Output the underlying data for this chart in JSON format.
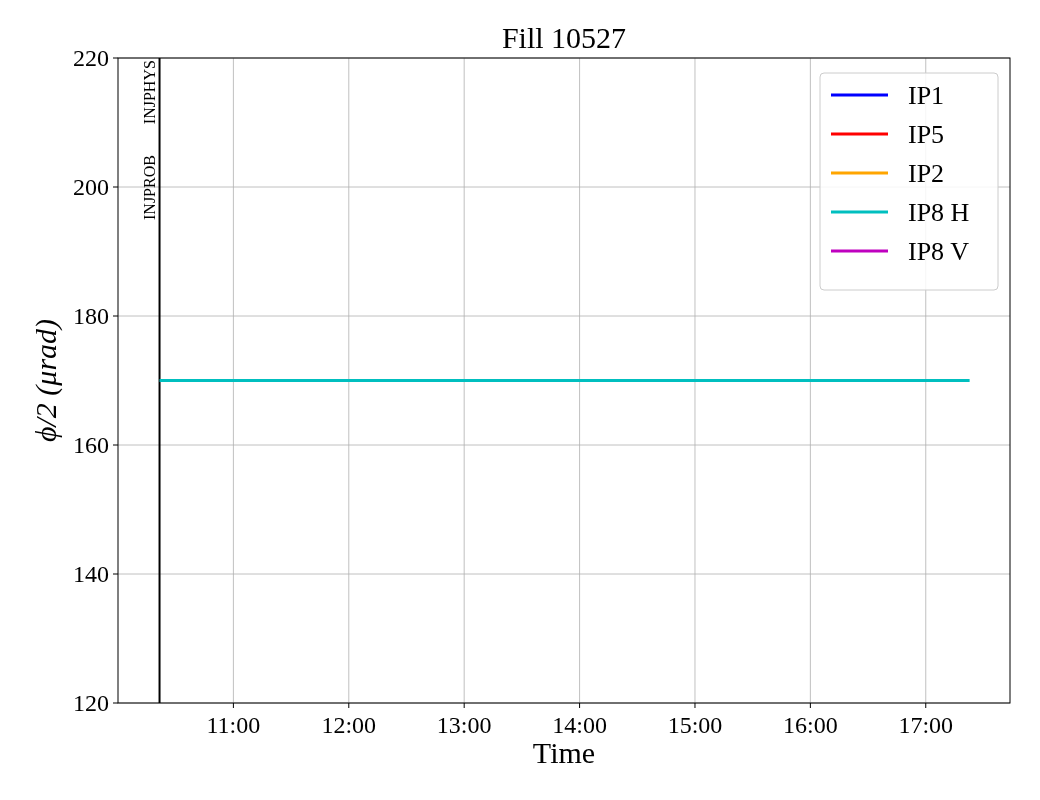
{
  "chart_data": {
    "type": "line",
    "title": "Fill 10527",
    "xlabel": "Time",
    "ylabel": "ϕ/2 (μrad)",
    "xlim": [
      10.0,
      17.73
    ],
    "xticks": [
      {
        "value": 11,
        "label": "11:00"
      },
      {
        "value": 12,
        "label": "12:00"
      },
      {
        "value": 13,
        "label": "13:00"
      },
      {
        "value": 14,
        "label": "14:00"
      },
      {
        "value": 15,
        "label": "15:00"
      },
      {
        "value": 16,
        "label": "16:00"
      },
      {
        "value": 17,
        "label": "17:00"
      }
    ],
    "ylim": [
      120,
      220
    ],
    "yticks": [
      120,
      140,
      160,
      180,
      200,
      220
    ],
    "grid": true,
    "legend": "top right",
    "line_style": "solid",
    "series": [
      {
        "name": "IP1",
        "color": "#0000ff"
      },
      {
        "name": "IP5",
        "color": "#ff0000"
      },
      {
        "name": "IP2",
        "color": "#ffa500"
      },
      {
        "name": "IP8 H",
        "color": "#00bfbf",
        "x": [
          10.36,
          17.38
        ],
        "values": [
          170,
          170
        ]
      },
      {
        "name": "IP8 V",
        "color": "#bf00bf"
      }
    ],
    "ref_lines": [
      {
        "axis": "x",
        "value": 10.36,
        "label": "INJPROB",
        "color": "#000000"
      }
    ],
    "annotations": [
      {
        "text": "INJPHYS",
        "x": 10.36,
        "y": 214.7
      }
    ]
  }
}
